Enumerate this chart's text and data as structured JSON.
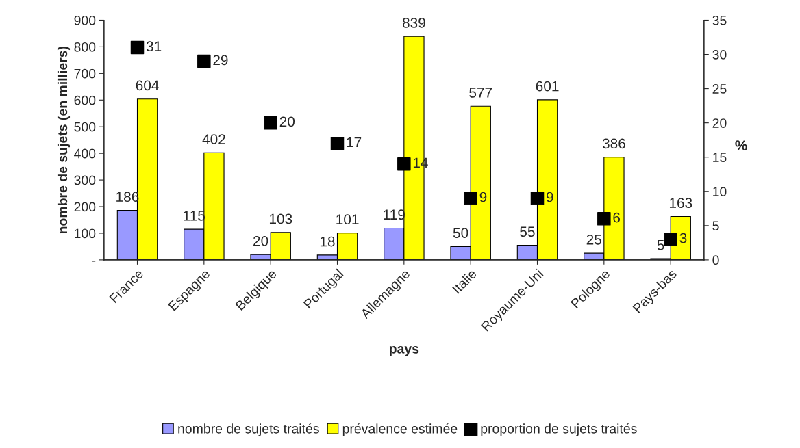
{
  "chart_data": {
    "type": "bar",
    "xlabel": "pays",
    "ylabel": "nombre de sujets (en milliers)",
    "y2label": "%",
    "categories": [
      "France",
      "Espagne",
      "Belgique",
      "Portugal",
      "Allemagne",
      "Italie",
      "Royaume-Uni",
      "Pologne",
      "Pays-bas"
    ],
    "series": [
      {
        "name": "nombre de sujets traités",
        "color": "#9999ff",
        "values": [
          186,
          115,
          20,
          18,
          119,
          50,
          55,
          25,
          5
        ]
      },
      {
        "name": "prévalence estimée",
        "color": "#ffff00",
        "values": [
          604,
          402,
          103,
          101,
          839,
          577,
          601,
          386,
          163
        ]
      },
      {
        "name": "proportion de sujets traités",
        "color": "#000000",
        "type": "scatter",
        "axis": "y2",
        "marker": "square",
        "values": [
          31,
          29,
          20,
          17,
          14,
          9,
          9,
          6,
          3
        ]
      }
    ],
    "ylim": [
      0,
      900
    ],
    "yticks": [
      {
        "value": 0,
        "label": "-"
      },
      100,
      200,
      300,
      400,
      500,
      600,
      700,
      800,
      900
    ],
    "y2lim": [
      0,
      35
    ],
    "y2ticks": [
      0,
      5,
      10,
      15,
      20,
      25,
      30,
      35
    ],
    "data_labels": true,
    "grid": false,
    "legend": "bottom"
  }
}
